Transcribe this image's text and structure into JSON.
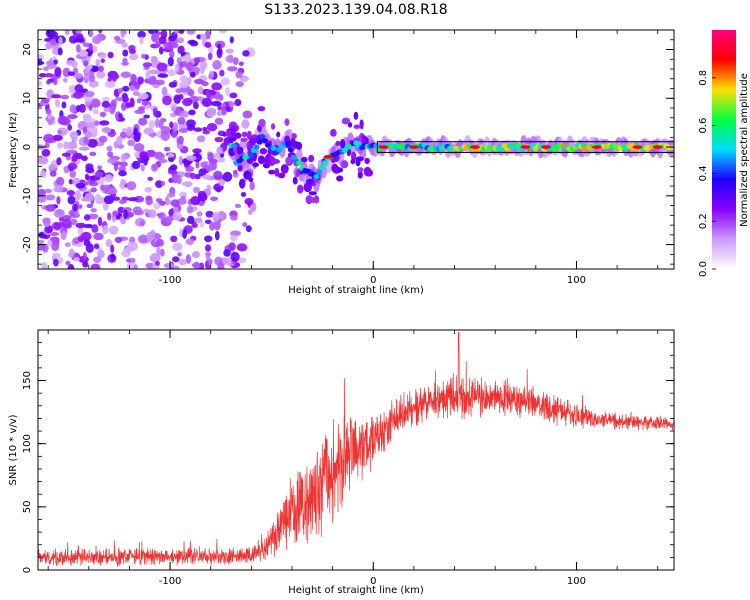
{
  "title": "S133.2023.139.04.08.R18",
  "chart_data": [
    {
      "type": "heatmap",
      "xlabel": "Height of straight line (km)",
      "ylabel": "Frequency (Hz)",
      "xlim": [
        -165,
        148
      ],
      "ylim": [
        -25,
        24
      ],
      "xticks": [
        -100,
        0,
        100
      ],
      "xtick_labels": [
        "-100",
        "0",
        "100"
      ],
      "yticks": [
        -20,
        -10,
        0,
        10,
        20
      ],
      "ytick_labels": [
        "-20",
        "-10",
        "0",
        "10",
        "20"
      ],
      "colorbar": {
        "label": "Normalized spectral amplitude",
        "range": [
          0,
          1
        ],
        "ticks": [
          0.0,
          0.2,
          0.4,
          0.6,
          0.8
        ],
        "tick_labels": [
          "0.0",
          "0.2",
          "0.4",
          "0.6",
          "0.8"
        ],
        "colormap": [
          "#ffffff",
          "#cc99ff",
          "#8800ff",
          "#2000ff",
          "#00ddff",
          "#00ff40",
          "#ffe000",
          "#ff0000",
          "#ff0080"
        ]
      },
      "noise_region_x": [
        -165,
        -65
      ],
      "track_center": [
        [
          -68,
          -3
        ],
        [
          -60,
          -2
        ],
        [
          -55,
          2
        ],
        [
          -48,
          -1
        ],
        [
          -42,
          1
        ],
        [
          -38,
          -3
        ],
        [
          -33,
          -5
        ],
        [
          -28,
          -6
        ],
        [
          -22,
          -2
        ],
        [
          -15,
          -1
        ],
        [
          -10,
          1
        ],
        [
          -5,
          0
        ],
        [
          0,
          0
        ],
        [
          10,
          0
        ],
        [
          20,
          0
        ],
        [
          30,
          0
        ],
        [
          50,
          0
        ],
        [
          80,
          0
        ],
        [
          110,
          0
        ],
        [
          148,
          0
        ]
      ],
      "grid": false
    },
    {
      "type": "line",
      "xlabel": "Height of straight line (km)",
      "ylabel": "SNR (10 * v/v)",
      "xlim": [
        -165,
        148
      ],
      "ylim": [
        0,
        190
      ],
      "xticks": [
        -100,
        0,
        100
      ],
      "xtick_labels": [
        "-100",
        "0",
        "100"
      ],
      "yticks": [
        0,
        50,
        100,
        150
      ],
      "ytick_labels": [
        "0",
        "50",
        "100",
        "150"
      ],
      "series": [
        {
          "color": "#ee3333",
          "envelope_x": [
            -165,
            -60,
            -50,
            -45,
            -35,
            -25,
            -15,
            -10,
            0,
            10,
            20,
            30,
            40,
            50,
            60,
            80,
            100,
            120,
            148
          ],
          "envelope_mean": [
            10,
            11,
            22,
            35,
            55,
            70,
            85,
            95,
            100,
            118,
            130,
            134,
            137,
            138,
            137,
            132,
            122,
            118,
            115
          ],
          "envelope_spread": [
            6,
            6,
            12,
            20,
            30,
            35,
            30,
            25,
            18,
            15,
            14,
            14,
            15,
            15,
            14,
            12,
            8,
            6,
            5
          ],
          "peak": [
            42,
            188
          ]
        }
      ],
      "grid": false
    }
  ]
}
